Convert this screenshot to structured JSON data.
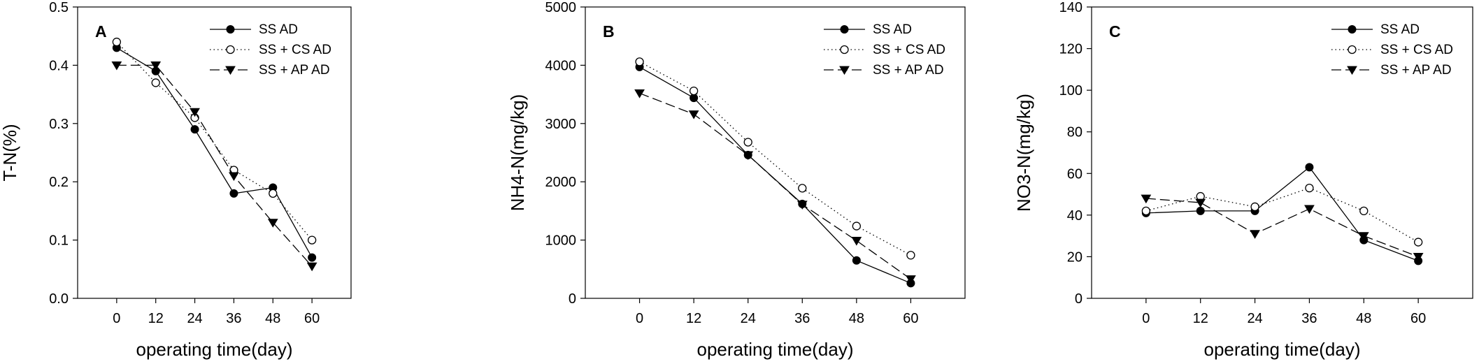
{
  "chart_data": [
    {
      "type": "line",
      "panel_label": "A",
      "xlabel": "operating time(day)",
      "ylabel": "T-N(%)",
      "x": [
        0,
        12,
        24,
        36,
        48,
        60
      ],
      "xticks": [
        "0",
        "12",
        "24",
        "36",
        "48",
        "60"
      ],
      "xlim": [
        -12,
        72
      ],
      "ylim": [
        0,
        0.5
      ],
      "yticks": [
        "0.0",
        "0.1",
        "0.2",
        "0.3",
        "0.4",
        "0.5"
      ],
      "legend_position": "top-right",
      "series": [
        {
          "name": "SS AD",
          "values": [
            0.43,
            0.39,
            0.29,
            0.18,
            0.19,
            0.07
          ]
        },
        {
          "name": "SS + CS AD",
          "values": [
            0.44,
            0.37,
            0.31,
            0.22,
            0.18,
            0.1
          ]
        },
        {
          "name": "SS + AP AD",
          "values": [
            0.4,
            0.4,
            0.32,
            0.21,
            0.13,
            0.055
          ]
        }
      ]
    },
    {
      "type": "line",
      "panel_label": "B",
      "xlabel": "operating time(day)",
      "ylabel": "NH4-N(mg/kg)",
      "x": [
        0,
        12,
        24,
        36,
        48,
        60
      ],
      "xticks": [
        "0",
        "12",
        "24",
        "36",
        "48",
        "60"
      ],
      "xlim": [
        -12,
        72
      ],
      "ylim": [
        0,
        5000
      ],
      "yticks": [
        "0",
        "1000",
        "2000",
        "3000",
        "4000",
        "5000"
      ],
      "legend_position": "top-right",
      "series": [
        {
          "name": "SS AD",
          "values": [
            3970,
            3440,
            2460,
            1620,
            650,
            260
          ]
        },
        {
          "name": "SS + CS AD",
          "values": [
            4060,
            3560,
            2680,
            1890,
            1240,
            740
          ]
        },
        {
          "name": "SS + AP AD",
          "values": [
            3520,
            3160,
            2460,
            1610,
            990,
            330
          ]
        }
      ]
    },
    {
      "type": "line",
      "panel_label": "C",
      "xlabel": "operating time(day)",
      "ylabel": "NO3-N(mg/kg)",
      "x": [
        0,
        12,
        24,
        36,
        48,
        60
      ],
      "xticks": [
        "0",
        "12",
        "24",
        "36",
        "48",
        "60"
      ],
      "xlim": [
        -12,
        72
      ],
      "ylim": [
        0,
        140
      ],
      "yticks": [
        "0",
        "20",
        "40",
        "60",
        "80",
        "100",
        "120",
        "140"
      ],
      "legend_position": "top-right",
      "series": [
        {
          "name": "SS AD",
          "values": [
            41,
            42,
            42,
            63,
            28,
            18
          ]
        },
        {
          "name": "SS + CS AD",
          "values": [
            42,
            49,
            44,
            53,
            42,
            27
          ]
        },
        {
          "name": "SS + AP AD",
          "values": [
            48,
            46,
            31,
            43,
            30,
            20
          ]
        }
      ]
    }
  ]
}
